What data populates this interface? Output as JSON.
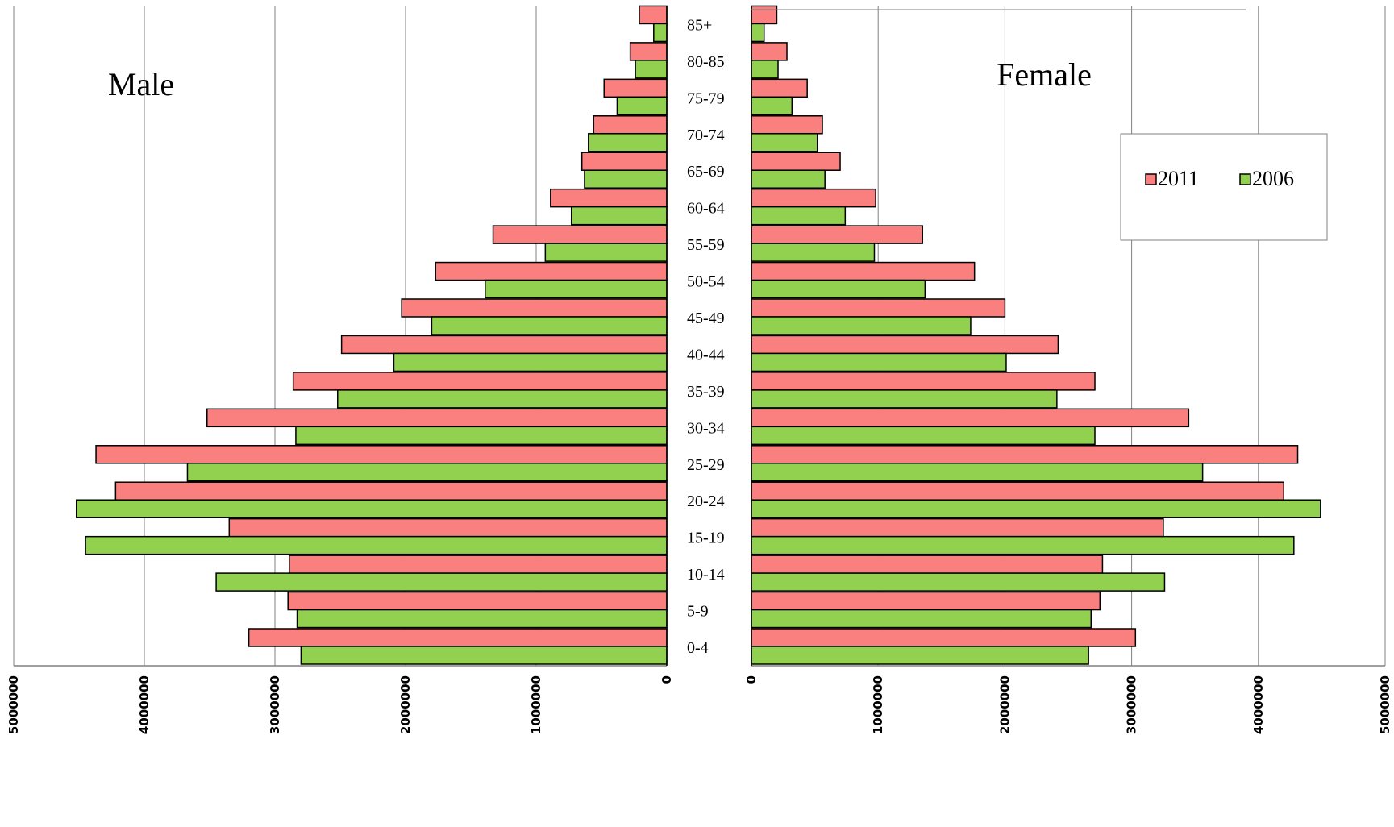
{
  "chart_data": {
    "type": "bar",
    "orientation": "horizontal",
    "layout": "population-pyramid",
    "categories": [
      "0-4",
      "5-9",
      "10-14",
      "15-19",
      "20-24",
      "25-29",
      "30-34",
      "35-39",
      "40-44",
      "45-49",
      "50-54",
      "55-59",
      "60-64",
      "65-69",
      "70-74",
      "75-79",
      "80-85",
      "85+"
    ],
    "panels": [
      {
        "title": "Male",
        "xlim": [
          0,
          5000000
        ],
        "reversed": true,
        "ticks": [
          "0",
          "1000000",
          "2000000",
          "3000000",
          "4000000",
          "5000000"
        ],
        "series": [
          {
            "name": "2011",
            "values": [
              3200000,
              2900000,
              2890000,
              3350000,
              4220000,
              4370000,
              3520000,
              2860000,
              2490000,
              2030000,
              1770000,
              1330000,
              890000,
              650000,
              560000,
              480000,
              280000,
              210000
            ]
          },
          {
            "name": "2006",
            "values": [
              2800000,
              2830000,
              3450000,
              4450000,
              4520000,
              3670000,
              2840000,
              2520000,
              2090000,
              1800000,
              1390000,
              930000,
              730000,
              630000,
              600000,
              380000,
              240000,
              100000
            ]
          }
        ]
      },
      {
        "title": "Female",
        "xlim": [
          0,
          5000000
        ],
        "reversed": false,
        "ticks": [
          "0",
          "1000000",
          "2000000",
          "3000000",
          "4000000",
          "5000000"
        ],
        "series": [
          {
            "name": "2011",
            "values": [
              3030000,
              2750000,
              2770000,
              3250000,
              4200000,
              4310000,
              3450000,
              2710000,
              2420000,
              2000000,
              1760000,
              1350000,
              980000,
              700000,
              560000,
              440000,
              280000,
              200000
            ]
          },
          {
            "name": "2006",
            "values": [
              2660000,
              2680000,
              3260000,
              4280000,
              4490000,
              3560000,
              2710000,
              2410000,
              2010000,
              1730000,
              1370000,
              970000,
              740000,
              580000,
              520000,
              320000,
              210000,
              100000
            ]
          }
        ]
      }
    ],
    "legend": {
      "position": "top-right",
      "entries": [
        "2011",
        "2006"
      ]
    },
    "grid": true,
    "colors": {
      "2011": "#fa8080",
      "2006": "#92d050",
      "bar_edge": "#000000",
      "grid": "#808080"
    }
  }
}
